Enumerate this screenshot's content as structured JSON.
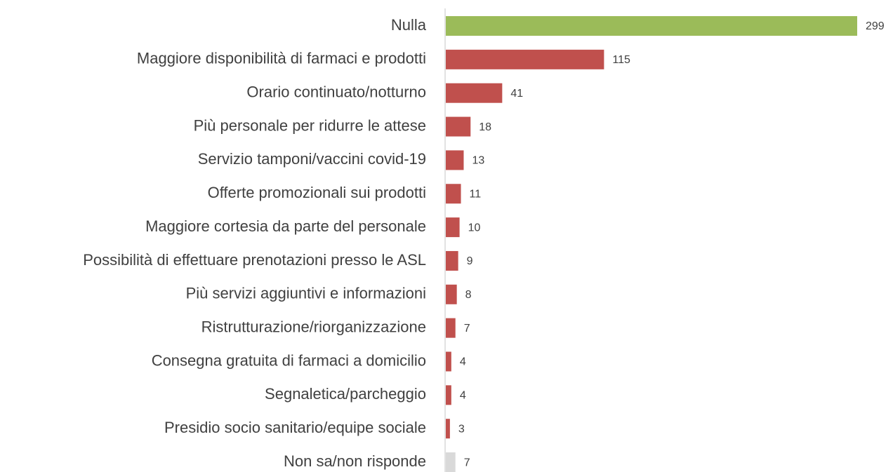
{
  "chart_data": {
    "type": "bar",
    "orientation": "horizontal",
    "categories": [
      "Nulla",
      "Maggiore disponibilità di farmaci e prodotti",
      "Orario continuato/notturno",
      "Più personale per ridurre le attese",
      "Servizio tamponi/vaccini covid-19",
      "Offerte promozionali sui prodotti",
      "Maggiore cortesia da parte del personale",
      "Possibilità di effettuare prenotazioni presso le ASL",
      "Più servizi aggiuntivi e informazioni",
      "Ristrutturazione/riorganizzazione",
      "Consegna gratuita di farmaci a domicilio",
      "Segnaletica/parcheggio",
      "Presidio socio sanitario/equipe sociale",
      "Non sa/non risponde"
    ],
    "values": [
      299,
      115,
      41,
      18,
      13,
      11,
      10,
      9,
      8,
      7,
      4,
      4,
      3,
      7
    ],
    "colors": [
      "#9bbb59",
      "#c0504d",
      "#c0504d",
      "#c0504d",
      "#c0504d",
      "#c0504d",
      "#c0504d",
      "#c0504d",
      "#c0504d",
      "#c0504d",
      "#c0504d",
      "#c0504d",
      "#c0504d",
      "#d9d9d9"
    ]
  }
}
